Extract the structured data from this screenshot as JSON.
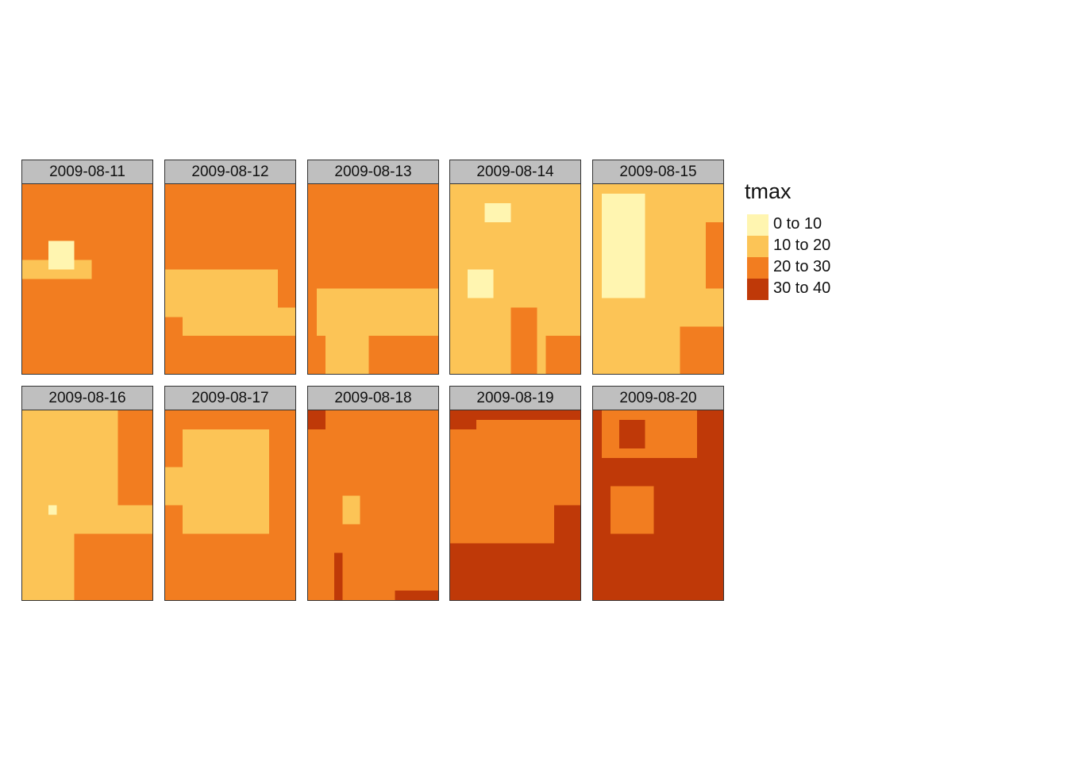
{
  "map": {
    "variable": "tmax",
    "classes": [
      {
        "label": "0 to 10",
        "color": "#fff5b0"
      },
      {
        "label": "10 to 20",
        "color": "#fcc456"
      },
      {
        "label": "20 to 30",
        "color": "#f27d20"
      },
      {
        "label": "30 to 40",
        "color": "#bf3908"
      }
    ],
    "panels": [
      {
        "date": "2009-08-11",
        "base_class": 2,
        "patches": [
          [
            1,
            0,
            8,
            7,
            9
          ],
          [
            2,
            1,
            12,
            4,
            5
          ],
          [
            0,
            3,
            6,
            5,
            8
          ]
        ]
      },
      {
        "date": "2009-08-12",
        "base_class": 2,
        "patches": [
          [
            1,
            0,
            9,
            12,
            13
          ],
          [
            1,
            2,
            13,
            15,
            15
          ]
        ]
      },
      {
        "date": "2009-08-13",
        "base_class": 2,
        "patches": [
          [
            1,
            1,
            11,
            14,
            15
          ],
          [
            1,
            2,
            16,
            6,
            19
          ]
        ]
      },
      {
        "date": "2009-08-14",
        "base_class": 1,
        "patches": [
          [
            0,
            4,
            2,
            6,
            3
          ],
          [
            0,
            2,
            9,
            4,
            11
          ],
          [
            2,
            7,
            13,
            9,
            19
          ],
          [
            2,
            11,
            16,
            14,
            19
          ]
        ]
      },
      {
        "date": "2009-08-15",
        "base_class": 1,
        "patches": [
          [
            0,
            1,
            1,
            5,
            11
          ],
          [
            2,
            10,
            15,
            14,
            19
          ],
          [
            2,
            13,
            4,
            14,
            10
          ]
        ]
      },
      {
        "date": "2009-08-16",
        "base_class": 1,
        "patches": [
          [
            2,
            11,
            0,
            14,
            9
          ],
          [
            2,
            6,
            13,
            14,
            19
          ],
          [
            0,
            3,
            10,
            3,
            10
          ]
        ]
      },
      {
        "date": "2009-08-17",
        "base_class": 2,
        "patches": [
          [
            1,
            2,
            2,
            11,
            12
          ],
          [
            1,
            0,
            6,
            2,
            9
          ]
        ]
      },
      {
        "date": "2009-08-18",
        "base_class": 2,
        "patches": [
          [
            3,
            0,
            0,
            1,
            1
          ],
          [
            1,
            4,
            9,
            5,
            11
          ],
          [
            3,
            10,
            19,
            14,
            19
          ],
          [
            3,
            3,
            15,
            3,
            19
          ]
        ]
      },
      {
        "date": "2009-08-19",
        "base_class": 3,
        "patches": [
          [
            2,
            0,
            1,
            11,
            13
          ],
          [
            2,
            12,
            1,
            14,
            9
          ],
          [
            3,
            0,
            0,
            2,
            1
          ]
        ]
      },
      {
        "date": "2009-08-20",
        "base_class": 3,
        "patches": [
          [
            2,
            1,
            0,
            11,
            4
          ],
          [
            2,
            2,
            8,
            6,
            12
          ],
          [
            3,
            3,
            1,
            5,
            3
          ]
        ]
      }
    ]
  }
}
